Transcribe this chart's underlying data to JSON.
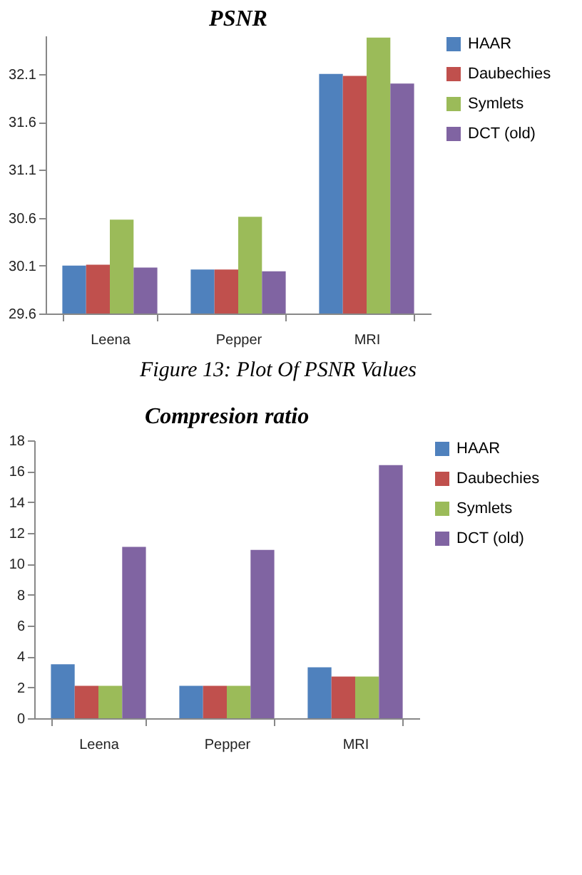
{
  "chart_data": [
    {
      "type": "bar",
      "title": "PSNR",
      "categories": [
        "Leena",
        "Pepper",
        "MRI"
      ],
      "ylim": [
        29.6,
        32.5
      ],
      "yticks": [
        29.6,
        30.1,
        30.6,
        31.1,
        31.6,
        32.1
      ],
      "grid": false,
      "legend": "right",
      "annotations": [
        "Figure 13: Plot Of PSNR Values"
      ],
      "series": [
        {
          "name": "HAAR",
          "color": "#4f81bd",
          "values": [
            30.1,
            30.06,
            32.1
          ]
        },
        {
          "name": "Daubechies",
          "color": "#c0504d",
          "values": [
            30.11,
            30.06,
            32.08
          ]
        },
        {
          "name": "Symlets",
          "color": "#9bbb59",
          "values": [
            30.58,
            30.61,
            32.48
          ]
        },
        {
          "name": "DCT (old)",
          "color": "#8064a2",
          "values": [
            30.08,
            30.04,
            32.0
          ]
        }
      ]
    },
    {
      "type": "bar",
      "title": "Compresion ratio",
      "categories": [
        "Leena",
        "Pepper",
        "MRI"
      ],
      "ylim": [
        0,
        18
      ],
      "yticks": [
        0,
        2,
        4,
        6,
        8,
        10,
        12,
        14,
        16,
        18
      ],
      "grid": false,
      "legend": "right",
      "series": [
        {
          "name": "HAAR",
          "color": "#4f81bd",
          "values": [
            3.5,
            2.1,
            3.3
          ]
        },
        {
          "name": "Daubechies",
          "color": "#c0504d",
          "values": [
            2.1,
            2.1,
            2.7
          ]
        },
        {
          "name": "Symlets",
          "color": "#9bbb59",
          "values": [
            2.1,
            2.1,
            2.7
          ]
        },
        {
          "name": "DCT (old)",
          "color": "#8064a2",
          "values": [
            11.1,
            10.9,
            16.4
          ]
        }
      ]
    }
  ]
}
